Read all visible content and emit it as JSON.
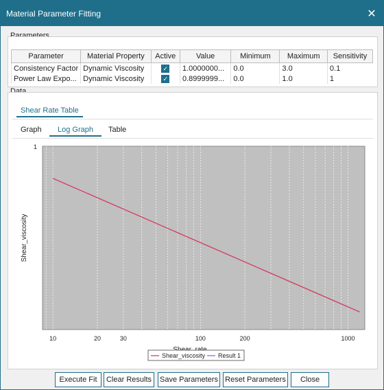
{
  "window": {
    "title": "Material Parameter Fitting",
    "close_glyph": "✕"
  },
  "parameters": {
    "group_label": "Parameters",
    "headers": [
      "Parameter",
      "Material Property",
      "Active",
      "Value",
      "Minimum",
      "Maximum",
      "Sensitivity"
    ],
    "rows": [
      {
        "parameter": "Consistency Factor",
        "material_property": "Dynamic Viscosity",
        "active": true,
        "value": "1.0000000...",
        "minimum": "0.0",
        "maximum": "3.0",
        "sensitivity": "0.1"
      },
      {
        "parameter": "Power Law Expo...",
        "material_property": "Dynamic Viscosity",
        "active": true,
        "value": "0.8999999...",
        "minimum": "0.0",
        "maximum": "1.0",
        "sensitivity": "1"
      }
    ]
  },
  "data": {
    "group_label": "Data",
    "outer_tab": "Shear Rate Table",
    "inner_tabs": [
      "Graph",
      "Log Graph",
      "Table"
    ],
    "active_inner_tab": "Log Graph"
  },
  "chart_data": {
    "type": "line",
    "xlabel": "Shear_rate",
    "ylabel": "Shear_viscosity",
    "xscale": "log",
    "yscale": "log",
    "xlim": [
      8.5,
      1300
    ],
    "y_top_tick": "1",
    "x_tick_labels": [
      "10",
      "20",
      "30",
      "100",
      "200",
      "1000"
    ],
    "x_ticks": [
      10,
      20,
      30,
      100,
      200,
      1000
    ],
    "grid": true,
    "legend_position": "bottom-center",
    "series": [
      {
        "name": "Shear_viscosity",
        "color": "#d6305a",
        "x": [
          10,
          1200
        ],
        "y": [
          0.38,
          0.0068
        ]
      },
      {
        "name": "Result 1",
        "color": "#6a6adf",
        "x": [],
        "y": []
      }
    ]
  },
  "buttons": {
    "execute_fit": "Execute Fit",
    "clear_results": "Clear Results",
    "save_parameters": "Save Parameters",
    "reset_parameters": "Reset Parameters",
    "close": "Close"
  }
}
